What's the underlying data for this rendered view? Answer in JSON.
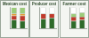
{
  "chart_data": [
    {
      "type": "bar",
      "title": "Mexican cost",
      "stacked": true,
      "tick_labels": false,
      "grid": false,
      "categories": [
        null,
        null
      ],
      "ylim": [
        0,
        100
      ],
      "series": [
        {
          "color": "#2e6b2a",
          "values": [
            40,
            35
          ]
        },
        {
          "color": "#c0392b",
          "values": [
            20,
            25
          ]
        },
        {
          "color": "#e59a2f",
          "values": [
            10,
            10
          ]
        },
        {
          "color": "#9ccc7a",
          "values": [
            30,
            30
          ]
        }
      ]
    },
    {
      "type": "bar",
      "title": "Producer cost",
      "stacked": true,
      "tick_labels": false,
      "grid": false,
      "categories": [
        null,
        null
      ],
      "ylim": [
        0,
        100
      ],
      "series": [
        {
          "color": "#2e6b2a",
          "values": [
            45,
            50
          ]
        },
        {
          "color": "#c0392b",
          "values": [
            25,
            20
          ]
        },
        {
          "color": "#ffffff",
          "values": [
            30,
            30
          ]
        }
      ]
    },
    {
      "type": "bar",
      "title": "Farmer cost",
      "stacked": true,
      "tick_labels": false,
      "grid": false,
      "categories": [
        null,
        null
      ],
      "ylim": [
        0,
        100
      ],
      "series": [
        {
          "color": "#2e6b2a",
          "values": [
            35,
            40
          ]
        },
        {
          "color": "#c0392b",
          "values": [
            20,
            15
          ]
        },
        {
          "color": "#9ccc7a",
          "values": [
            15,
            20
          ]
        },
        {
          "color": "#ffffff",
          "values": [
            30,
            25
          ]
        }
      ]
    }
  ]
}
